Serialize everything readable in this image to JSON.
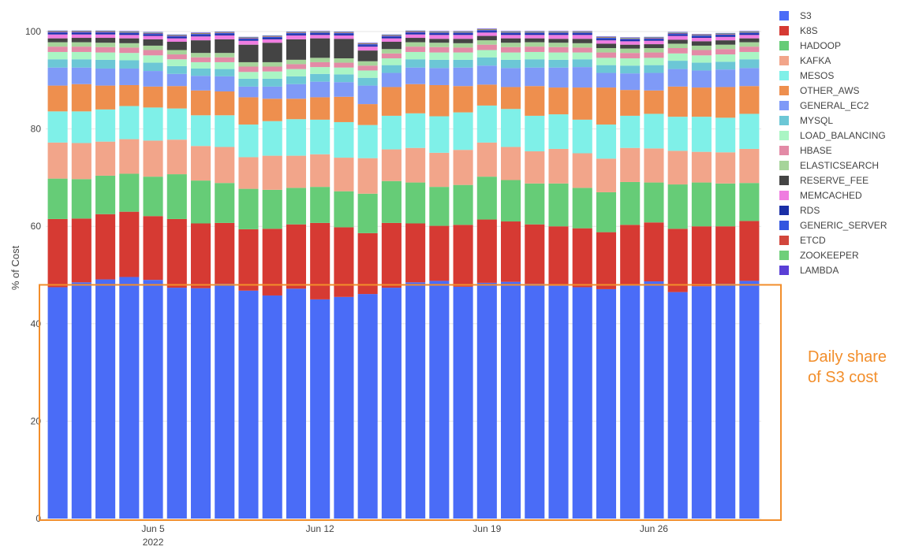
{
  "chart_data": {
    "type": "bar",
    "stacked": true,
    "ylabel": "% of Cost",
    "ylim": [
      0,
      100
    ],
    "yticks": [
      0,
      20,
      40,
      60,
      80,
      100
    ],
    "grid": true,
    "legend_position": "right",
    "x": [
      "2022-06-01",
      "2022-06-02",
      "2022-06-03",
      "2022-06-04",
      "2022-06-05",
      "2022-06-06",
      "2022-06-07",
      "2022-06-08",
      "2022-06-09",
      "2022-06-10",
      "2022-06-11",
      "2022-06-12",
      "2022-06-13",
      "2022-06-14",
      "2022-06-15",
      "2022-06-16",
      "2022-06-17",
      "2022-06-18",
      "2022-06-19",
      "2022-06-20",
      "2022-06-21",
      "2022-06-22",
      "2022-06-23",
      "2022-06-24",
      "2022-06-25",
      "2022-06-26",
      "2022-06-27",
      "2022-06-28",
      "2022-06-29",
      "2022-06-30"
    ],
    "xticks": [
      {
        "date": "2022-06-05",
        "label": "Jun 5",
        "sublabel": "2022"
      },
      {
        "date": "2022-06-12",
        "label": "Jun 12",
        "sublabel": ""
      },
      {
        "date": "2022-06-19",
        "label": "Jun 19",
        "sublabel": ""
      },
      {
        "date": "2022-06-26",
        "label": "Jun 26",
        "sublabel": ""
      }
    ],
    "series": [
      {
        "name": "S3",
        "color": "#4a6cf7",
        "values": [
          47.5,
          48.5,
          49.1,
          49.6,
          49.0,
          47.4,
          47.3,
          48.2,
          46.8,
          45.8,
          47.2,
          45.0,
          45.5,
          46.1,
          47.4,
          48.5,
          48.8,
          47.6,
          48.4,
          48.6,
          48.2,
          47.8,
          47.5,
          47.1,
          47.9,
          48.7,
          46.5,
          47.7,
          48.2,
          48.8
        ]
      },
      {
        "name": "K8S",
        "color": "#d63a33",
        "values": [
          14.0,
          13.1,
          13.4,
          13.4,
          13.1,
          14.1,
          13.3,
          12.5,
          12.6,
          13.7,
          13.2,
          15.7,
          14.3,
          12.5,
          13.3,
          12.1,
          11.3,
          12.7,
          13.0,
          12.4,
          12.2,
          12.2,
          12.1,
          11.7,
          12.4,
          12.1,
          13.0,
          12.3,
          11.8,
          12.3
        ]
      },
      {
        "name": "HADOOP",
        "color": "#66cc77",
        "values": [
          8.3,
          8.1,
          7.9,
          7.8,
          8.1,
          9.2,
          8.8,
          8.2,
          8.3,
          8.0,
          7.5,
          7.4,
          7.4,
          8.1,
          8.6,
          8.4,
          8.0,
          8.2,
          8.8,
          8.5,
          8.4,
          8.8,
          8.3,
          8.2,
          8.8,
          8.2,
          9.1,
          9.0,
          8.8,
          7.8
        ]
      },
      {
        "name": "KAFKA",
        "color": "#f2a58a",
        "values": [
          7.4,
          7.4,
          7.0,
          7.1,
          7.4,
          7.1,
          7.1,
          7.4,
          6.5,
          7.0,
          6.6,
          6.7,
          6.9,
          7.3,
          6.5,
          7.1,
          7.0,
          7.2,
          7.0,
          6.8,
          6.6,
          7.1,
          7.1,
          6.9,
          7.0,
          7.0,
          6.9,
          6.3,
          6.4,
          7.0
        ]
      },
      {
        "name": "MESOS",
        "color": "#7ff0e8",
        "values": [
          6.4,
          6.5,
          6.6,
          6.8,
          6.8,
          6.4,
          6.3,
          6.5,
          6.7,
          7.1,
          7.5,
          7.1,
          7.3,
          6.8,
          6.9,
          7.1,
          7.5,
          7.7,
          7.6,
          7.8,
          7.3,
          7.1,
          6.9,
          7.0,
          6.6,
          7.1,
          7.0,
          7.2,
          7.1,
          7.2
        ]
      },
      {
        "name": "OTHER_AWS",
        "color": "#ee8f4e",
        "values": [
          5.3,
          5.6,
          4.9,
          4.3,
          4.3,
          4.6,
          5.1,
          4.9,
          5.6,
          4.6,
          4.2,
          4.6,
          5.2,
          4.3,
          5.9,
          6.0,
          6.4,
          5.4,
          4.3,
          4.5,
          6.1,
          5.5,
          6.6,
          7.6,
          5.3,
          4.8,
          6.2,
          6.0,
          6.3,
          5.7
        ]
      },
      {
        "name": "GENERAL_EC2",
        "color": "#7f9af7",
        "values": [
          3.7,
          3.4,
          3.5,
          3.4,
          3.2,
          2.5,
          3.0,
          3.1,
          2.2,
          2.5,
          3.0,
          3.2,
          3.0,
          3.8,
          2.9,
          3.4,
          3.5,
          3.8,
          3.9,
          3.9,
          3.8,
          4.1,
          4.2,
          3.0,
          3.4,
          3.6,
          3.6,
          3.5,
          3.6,
          3.7
        ]
      },
      {
        "name": "MYSQL",
        "color": "#6cc7d6",
        "values": [
          1.7,
          1.7,
          1.8,
          1.7,
          1.7,
          1.6,
          1.5,
          1.5,
          1.6,
          1.6,
          1.6,
          1.6,
          1.6,
          1.6,
          1.6,
          1.7,
          1.7,
          1.6,
          1.7,
          1.7,
          1.7,
          1.6,
          1.6,
          1.6,
          1.6,
          1.6,
          1.7,
          1.6,
          1.6,
          1.8
        ]
      },
      {
        "name": "LOAD_BALANCING",
        "color": "#aaf5c4",
        "values": [
          1.5,
          1.5,
          1.5,
          1.5,
          1.5,
          1.4,
          1.3,
          1.4,
          1.4,
          1.5,
          1.5,
          1.4,
          1.4,
          1.5,
          1.4,
          1.5,
          1.5,
          1.5,
          1.5,
          1.5,
          1.5,
          1.5,
          1.4,
          1.5,
          1.5,
          1.5,
          1.5,
          1.5,
          1.5,
          1.5
        ]
      },
      {
        "name": "HBASE",
        "color": "#e38aa6",
        "values": [
          1.1,
          1.1,
          1.1,
          1.1,
          1.1,
          1.0,
          1.0,
          1.0,
          1.1,
          1.0,
          1.0,
          1.0,
          1.0,
          1.0,
          1.0,
          1.1,
          1.1,
          1.0,
          1.1,
          1.1,
          1.1,
          1.1,
          1.0,
          1.1,
          1.1,
          1.1,
          1.1,
          1.1,
          1.1,
          1.1
        ]
      },
      {
        "name": "ELASTICSEARCH",
        "color": "#a6d49a",
        "values": [
          0.9,
          0.9,
          0.9,
          0.9,
          0.9,
          0.9,
          0.9,
          0.9,
          0.9,
          0.9,
          0.9,
          0.9,
          0.9,
          0.9,
          0.9,
          0.9,
          0.9,
          0.9,
          0.9,
          0.9,
          0.9,
          0.9,
          0.9,
          0.9,
          0.9,
          0.9,
          0.9,
          0.9,
          0.9,
          0.9
        ]
      },
      {
        "name": "RESERVE_FEE",
        "color": "#444444",
        "values": [
          0.8,
          0.9,
          1.0,
          1.0,
          1.3,
          1.7,
          2.6,
          2.8,
          3.6,
          4.0,
          4.2,
          4.0,
          4.0,
          2.2,
          1.5,
          0.9,
          0.8,
          0.9,
          0.9,
          0.9,
          0.8,
          0.8,
          0.9,
          0.9,
          0.8,
          0.8,
          0.8,
          0.9,
          0.9,
          0.8
        ]
      },
      {
        "name": "MEMCACHED",
        "color": "#ef7de0",
        "values": [
          0.8,
          0.7,
          0.7,
          0.7,
          0.7,
          0.7,
          0.8,
          0.8,
          0.8,
          0.7,
          0.8,
          0.7,
          0.7,
          0.8,
          0.7,
          0.7,
          0.8,
          0.8,
          0.7,
          0.7,
          0.7,
          0.8,
          0.8,
          0.7,
          0.7,
          0.7,
          0.8,
          0.7,
          0.7,
          0.7
        ]
      },
      {
        "name": "RDS",
        "color": "#1a2fa6",
        "values": [
          0.3,
          0.3,
          0.3,
          0.3,
          0.3,
          0.3,
          0.3,
          0.3,
          0.3,
          0.3,
          0.3,
          0.3,
          0.3,
          0.3,
          0.3,
          0.3,
          0.3,
          0.3,
          0.3,
          0.3,
          0.3,
          0.3,
          0.3,
          0.3,
          0.3,
          0.3,
          0.3,
          0.3,
          0.3,
          0.3
        ]
      },
      {
        "name": "GENERIC_SERVER",
        "color": "#3356e0",
        "values": [
          0.2,
          0.2,
          0.2,
          0.2,
          0.2,
          0.2,
          0.2,
          0.2,
          0.2,
          0.2,
          0.2,
          0.2,
          0.2,
          0.2,
          0.2,
          0.2,
          0.2,
          0.2,
          0.2,
          0.2,
          0.2,
          0.2,
          0.2,
          0.2,
          0.2,
          0.2,
          0.2,
          0.2,
          0.2,
          0.2
        ]
      },
      {
        "name": "ETCD",
        "color": "#d2463c",
        "values": [
          0.1,
          0.1,
          0.1,
          0.1,
          0.1,
          0.1,
          0.1,
          0.1,
          0.1,
          0.1,
          0.1,
          0.1,
          0.1,
          0.1,
          0.1,
          0.1,
          0.1,
          0.1,
          0.1,
          0.1,
          0.1,
          0.1,
          0.1,
          0.1,
          0.1,
          0.1,
          0.1,
          0.1,
          0.1,
          0.1
        ]
      },
      {
        "name": "ZOOKEEPER",
        "color": "#6fcf7a",
        "values": [
          0.1,
          0.1,
          0.1,
          0.1,
          0.1,
          0.1,
          0.1,
          0.1,
          0.1,
          0.1,
          0.1,
          0.1,
          0.1,
          0.1,
          0.1,
          0.1,
          0.1,
          0.1,
          0.1,
          0.1,
          0.1,
          0.1,
          0.1,
          0.1,
          0.1,
          0.1,
          0.1,
          0.1,
          0.1,
          0.1
        ]
      },
      {
        "name": "LAMBDA",
        "color": "#5a3fd6",
        "values": [
          0.1,
          0.1,
          0.1,
          0.1,
          0.1,
          0.1,
          0.1,
          0.1,
          0.1,
          0.1,
          0.1,
          0.1,
          0.1,
          0.1,
          0.1,
          0.1,
          0.1,
          0.1,
          0.1,
          0.1,
          0.1,
          0.1,
          0.1,
          0.1,
          0.1,
          0.1,
          0.1,
          0.1,
          0.1,
          0.1
        ]
      }
    ],
    "annotation": {
      "text": "Daily share of S3 cost",
      "color": "#f28e2b",
      "ylim": [
        0,
        47.5
      ]
    }
  }
}
